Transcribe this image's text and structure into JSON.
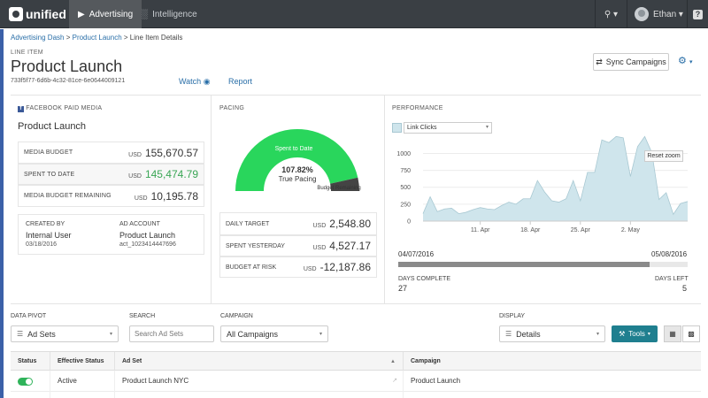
{
  "topnav": {
    "logo": "unified",
    "tabs": [
      {
        "label": "Advertising",
        "icon": "megaphone-icon",
        "active": true
      },
      {
        "label": "Intelligence",
        "icon": "bar-chart-icon",
        "active": false
      }
    ],
    "key_caret": "▾",
    "user": "Ethan",
    "help": "?"
  },
  "breadcrumb": [
    "Advertising Dash",
    "Product Launch",
    "Line Item Details"
  ],
  "header": {
    "section_label": "LINE ITEM",
    "title": "Product Launch",
    "id": "733f5f77-6d6b-4c32-81ce-6e0644009121",
    "watch": "Watch",
    "report": "Report",
    "sync_button": "Sync Campaigns"
  },
  "facebook": {
    "section_title": "FACEBOOK PAID MEDIA",
    "name": "Product Launch",
    "metrics": [
      {
        "label": "MEDIA BUDGET",
        "currency": "USD",
        "value": "155,670.57"
      },
      {
        "label": "SPENT TO DATE",
        "currency": "USD",
        "value": "145,474.79"
      },
      {
        "label": "MEDIA BUDGET REMAINING",
        "currency": "USD",
        "value": "10,195.78"
      }
    ],
    "created_by_label": "CREATED BY",
    "created_by": "Internal User",
    "created_date": "03/18/2016",
    "ad_account_label": "AD ACCOUNT",
    "ad_account": "Product Launch",
    "ad_account_id": "act_1023414447696"
  },
  "pacing": {
    "section_title": "PACING",
    "gauge_fraction": 0.93,
    "spent_label": "Spent to Date",
    "remaining_label": "Budget Remaining",
    "percent": "107.82%",
    "percent_label": "True Pacing",
    "rows": [
      {
        "label": "DAILY TARGET",
        "currency": "USD",
        "value": "2,548.80"
      },
      {
        "label": "SPENT YESTERDAY",
        "currency": "USD",
        "value": "4,527.17"
      },
      {
        "label": "BUDGET AT RISK",
        "currency": "USD",
        "value": "-12,187.86"
      }
    ]
  },
  "performance": {
    "section_title": "PERFORMANCE",
    "metric": "Link Clicks",
    "reset_zoom": "Reset zoom",
    "start_date": "04/07/2016",
    "end_date": "05/08/2016",
    "progress": 0.87,
    "days_complete_label": "DAYS COMPLETE",
    "days_complete": "27",
    "days_left_label": "DAYS LEFT",
    "days_left": "5"
  },
  "chart_data": {
    "type": "area",
    "series": [
      {
        "values": [
          110,
          360,
          140,
          180,
          190,
          110,
          130,
          170,
          200,
          180,
          170,
          230,
          280,
          250,
          330,
          330,
          600,
          430,
          300,
          280,
          330,
          600,
          300,
          720,
          720,
          1200,
          1160,
          1250,
          1230,
          660,
          1100,
          1250,
          1010,
          320,
          420,
          100,
          260,
          290
        ]
      }
    ],
    "x_tick_labels": [
      "11. Apr",
      "18. Apr",
      "25. Apr",
      "2. May"
    ],
    "y_tick_labels": [
      "0",
      "250",
      "500",
      "750",
      "1000"
    ],
    "ylim": [
      0,
      1150
    ],
    "color": "#cfe5ec",
    "line_color": "#a8c8d2"
  },
  "filters": {
    "data_pivot_label": "DATA PIVOT",
    "data_pivot": "Ad Sets",
    "search_label": "SEARCH",
    "search_placeholder": "Search Ad Sets",
    "campaign_label": "CAMPAIGN",
    "campaign": "All Campaigns",
    "display_label": "DISPLAY",
    "display": "Details",
    "tools": "Tools"
  },
  "grid": {
    "columns": [
      "Status",
      "Effective Status",
      "Ad Set",
      "Campaign"
    ],
    "rows": [
      {
        "effective_status": "Active",
        "ad_set": "Product Launch NYC",
        "campaign": "Product Launch"
      }
    ]
  },
  "colors": {
    "topbar": "#3a3f44",
    "accent": "#2a6fa8",
    "gauge_green": "#29d65c",
    "gauge_dark": "#444444",
    "tools_teal": "#1f7f8f"
  }
}
